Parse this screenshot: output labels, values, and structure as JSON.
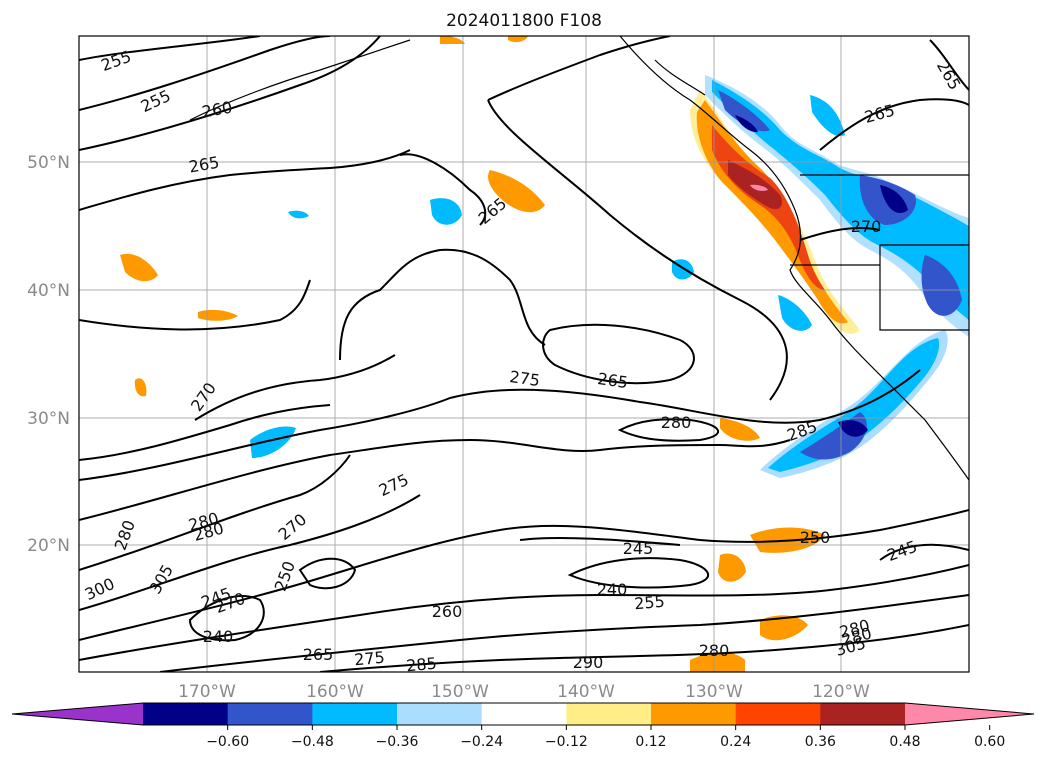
{
  "title": "2024011800 F108",
  "map": {
    "lat_labels": [
      "50°N",
      "40°N",
      "30°N",
      "20°N"
    ],
    "lon_labels": [
      "170°W",
      "160°W",
      "150°W",
      "140°W",
      "130°W",
      "120°W"
    ],
    "grid_lines": true,
    "contour_labels": [
      "255",
      "255",
      "260",
      "265",
      "265",
      "270",
      "275",
      "265",
      "280",
      "285",
      "275",
      "280",
      "280",
      "280",
      "270",
      "250",
      "245",
      "240",
      "265",
      "275",
      "285",
      "260",
      "245",
      "240",
      "255",
      "290",
      "280",
      "250",
      "245",
      "280",
      "265",
      "280",
      "270",
      "305",
      "300",
      "305",
      "265",
      "270"
    ]
  },
  "colorbar": {
    "ticks": [
      "−0.60",
      "−0.48",
      "−0.36",
      "−0.24",
      "−0.12",
      "0.12",
      "0.24",
      "0.36",
      "0.48",
      "0.60"
    ],
    "colors": [
      "#9933cc",
      "#000088",
      "#3355cc",
      "#00bbff",
      "#aaddff",
      "#ffffff",
      "#ffee88",
      "#ff9900",
      "#ff4400",
      "#aa2222",
      "#ff88aa"
    ],
    "extend": "both"
  },
  "colors": {
    "shade_orange": "#ff9900",
    "shade_red": "#ee4411",
    "shade_darkred": "#aa2222",
    "shade_lightyellow": "#ffee99",
    "shade_blue": "#00bbff",
    "shade_midblue": "#3355cc",
    "shade_darkblue": "#000088",
    "shade_lightblue": "#aaddff",
    "shade_pink": "#ff88aa"
  }
}
